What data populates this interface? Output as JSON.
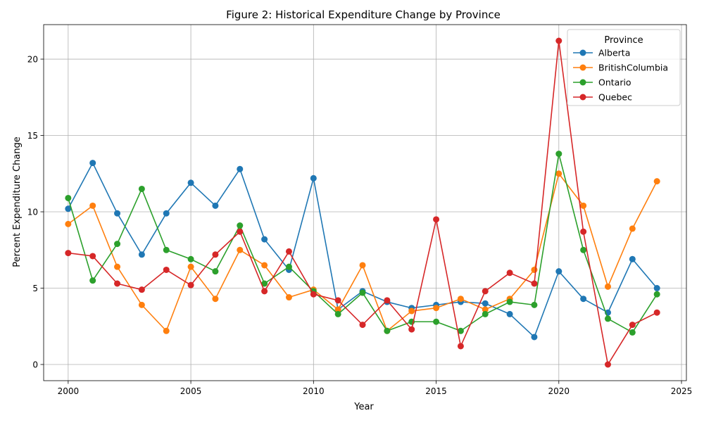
{
  "chart_data": {
    "type": "line",
    "title": "Figure 2: Historical Expenditure Change by Province",
    "xlabel": "Year",
    "ylabel": "Percent Expenditure Change",
    "xlim": [
      1999.0,
      2025.2
    ],
    "ylim": [
      -1.06,
      22.26
    ],
    "x_ticks": [
      2000,
      2005,
      2010,
      2015,
      2020,
      2025
    ],
    "y_ticks": [
      0,
      5,
      10,
      15,
      20
    ],
    "grid": true,
    "legend_title": "Province",
    "legend_position": "top-right",
    "x": [
      2000,
      2001,
      2002,
      2003,
      2004,
      2005,
      2006,
      2007,
      2008,
      2009,
      2010,
      2011,
      2012,
      2013,
      2014,
      2015,
      2016,
      2017,
      2018,
      2019,
      2020,
      2021,
      2022,
      2023,
      2024
    ],
    "series": [
      {
        "name": "Alberta",
        "color": "#1f77b4",
        "values": [
          10.2,
          13.2,
          9.9,
          7.2,
          9.9,
          11.9,
          10.4,
          12.8,
          8.2,
          6.2,
          12.2,
          3.6,
          4.8,
          4.1,
          3.7,
          3.9,
          4.1,
          4.0,
          3.3,
          1.8,
          6.1,
          4.3,
          3.4,
          6.9,
          5.0
        ]
      },
      {
        "name": "BritishColumbia",
        "color": "#ff7f0e",
        "values": [
          9.2,
          10.4,
          6.4,
          3.9,
          2.2,
          6.4,
          4.3,
          7.5,
          6.5,
          4.4,
          4.9,
          3.6,
          6.5,
          2.2,
          3.5,
          3.7,
          4.3,
          3.6,
          4.3,
          6.2,
          12.5,
          10.4,
          5.1,
          8.9,
          12.0
        ]
      },
      {
        "name": "Ontario",
        "color": "#2ca02c",
        "values": [
          10.9,
          5.5,
          7.9,
          11.5,
          7.5,
          6.9,
          6.1,
          9.1,
          5.3,
          6.4,
          4.8,
          3.3,
          4.7,
          2.2,
          2.8,
          2.8,
          2.2,
          3.3,
          4.1,
          3.9,
          13.8,
          7.5,
          3.0,
          2.1,
          4.6
        ]
      },
      {
        "name": "Quebec",
        "color": "#d62728",
        "values": [
          7.3,
          7.1,
          5.3,
          4.9,
          6.2,
          5.2,
          7.2,
          8.7,
          4.8,
          7.4,
          4.6,
          4.2,
          2.6,
          4.2,
          2.3,
          9.5,
          1.2,
          4.8,
          6.0,
          5.3,
          21.2,
          8.7,
          0.0,
          2.6,
          3.4
        ]
      }
    ]
  }
}
